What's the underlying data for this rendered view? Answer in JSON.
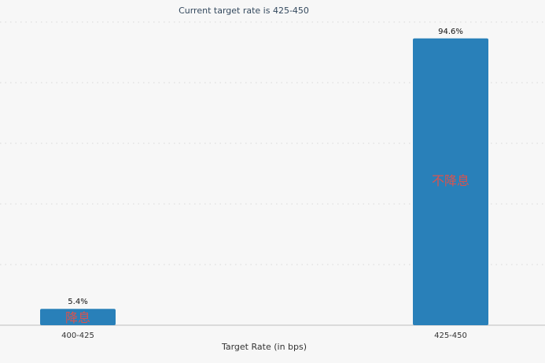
{
  "chart_data": {
    "type": "bar",
    "subtitle": "Current target rate is 425-450",
    "xlabel": "Target Rate (in bps)",
    "categories": [
      "400-425",
      "425-450"
    ],
    "values": [
      5.4,
      94.6
    ],
    "data_labels": [
      "5.4%",
      "94.6%"
    ],
    "annotations": [
      "降息",
      "不降息"
    ],
    "ylim": [
      0,
      100
    ],
    "grid": true,
    "bar_color": "#2980b9",
    "annotation_color": "#d9534f"
  }
}
